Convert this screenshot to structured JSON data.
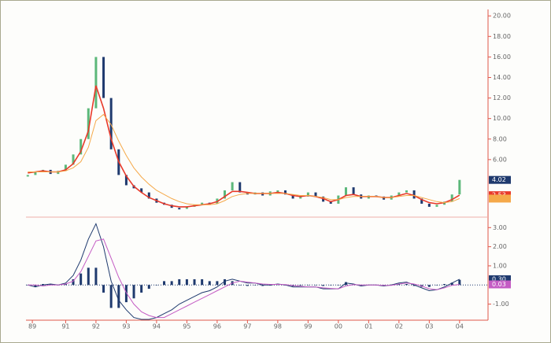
{
  "chart_data": {
    "type": "financial",
    "x": [
      1989.75,
      1990,
      1990.25,
      1990.5,
      1990.75,
      1991,
      1991.25,
      1991.5,
      1991.75,
      1992,
      1992.25,
      1992.5,
      1992.75,
      1993,
      1993.25,
      1993.5,
      1993.75,
      1994,
      1994.25,
      1994.5,
      1994.75,
      1995,
      1995.25,
      1995.5,
      1995.75,
      1996,
      1996.25,
      1996.5,
      1996.75,
      1997,
      1997.25,
      1997.5,
      1997.75,
      1998,
      1998.25,
      1998.5,
      1998.75,
      1999,
      1999.25,
      1999.5,
      1999.75,
      2000,
      2000.25,
      2000.5,
      2000.75,
      2001,
      2001.25,
      2001.5,
      2001.75,
      2002,
      2002.25,
      2002.5,
      2002.75,
      2003,
      2003.25,
      2003.5,
      2003.75,
      2004
    ],
    "xlim": [
      1989.69,
      2004.42
    ],
    "xticks": [
      {
        "value": 1989.9,
        "label": "89"
      },
      {
        "value": 1991,
        "label": "91"
      },
      {
        "value": 1992,
        "label": "92"
      },
      {
        "value": 1993,
        "label": "93"
      },
      {
        "value": 1994,
        "label": "94"
      },
      {
        "value": 1995,
        "label": "95"
      },
      {
        "value": 1996,
        "label": "96"
      },
      {
        "value": 1997,
        "label": "97"
      },
      {
        "value": 1998,
        "label": "98"
      },
      {
        "value": 1999,
        "label": "99"
      },
      {
        "value": 2000,
        "label": "00"
      },
      {
        "value": 2001,
        "label": "01"
      },
      {
        "value": 2002,
        "label": "02"
      },
      {
        "value": 2003,
        "label": "03"
      },
      {
        "value": 2004,
        "label": "04"
      }
    ],
    "panels": [
      {
        "ylim": [
          0.7,
          20.4
        ],
        "yticks": [
          {
            "value": 20,
            "label": "20.00"
          },
          {
            "value": 18,
            "label": "18.00"
          },
          {
            "value": 16,
            "label": "16.00"
          },
          {
            "value": 14,
            "label": "14.00"
          },
          {
            "value": 12,
            "label": "12.00"
          },
          {
            "value": 10,
            "label": "10.00"
          },
          {
            "value": 8,
            "label": "8.00"
          },
          {
            "value": 6,
            "label": "6.00"
          }
        ],
        "series": [
          {
            "style": "bars",
            "color": "#1f3a6e",
            "up_color": "#5cb87a",
            "last_label": "4.02",
            "values": [
              4.5,
              4.8,
              5.0,
              4.6,
              4.9,
              5.5,
              6.5,
              8.0,
              11.0,
              16.0,
              12.0,
              7.0,
              4.5,
              3.5,
              3.2,
              2.8,
              2.2,
              1.8,
              1.6,
              1.3,
              1.2,
              1.4,
              1.6,
              1.8,
              1.7,
              2.2,
              3.0,
              3.8,
              2.8,
              2.6,
              2.8,
              2.5,
              2.9,
              3.0,
              2.6,
              2.2,
              2.4,
              2.8,
              2.4,
              1.9,
              1.7,
              2.5,
              3.3,
              2.6,
              2.2,
              2.5,
              2.4,
              2.1,
              2.5,
              2.8,
              3.0,
              2.2,
              1.7,
              1.4,
              1.6,
              1.9,
              2.6,
              4.02
            ]
          },
          {
            "style": "line",
            "color": "#e8392a",
            "last_label": "2.53",
            "values": [
              4.7,
              4.8,
              4.9,
              4.8,
              4.8,
              5.0,
              5.6,
              6.8,
              8.8,
              13.2,
              11.0,
              8.0,
              5.8,
              4.4,
              3.4,
              2.8,
              2.3,
              2.0,
              1.7,
              1.5,
              1.4,
              1.4,
              1.5,
              1.6,
              1.7,
              1.9,
              2.4,
              2.9,
              2.9,
              2.8,
              2.7,
              2.7,
              2.7,
              2.8,
              2.7,
              2.5,
              2.4,
              2.5,
              2.4,
              2.2,
              1.9,
              2.1,
              2.5,
              2.6,
              2.4,
              2.4,
              2.4,
              2.3,
              2.3,
              2.5,
              2.7,
              2.5,
              2.1,
              1.8,
              1.7,
              1.8,
              2.1,
              2.53
            ]
          },
          {
            "style": "line",
            "color": "#f5a94a",
            "values": [
              4.8,
              4.8,
              4.8,
              4.8,
              4.8,
              4.9,
              5.2,
              5.8,
              7.2,
              9.8,
              10.4,
              9.4,
              7.8,
              6.4,
              5.2,
              4.3,
              3.6,
              3.0,
              2.6,
              2.2,
              1.9,
              1.7,
              1.6,
              1.6,
              1.6,
              1.7,
              2.0,
              2.4,
              2.6,
              2.7,
              2.7,
              2.7,
              2.7,
              2.7,
              2.7,
              2.6,
              2.5,
              2.5,
              2.4,
              2.3,
              2.1,
              2.1,
              2.3,
              2.4,
              2.4,
              2.4,
              2.4,
              2.3,
              2.3,
              2.4,
              2.5,
              2.5,
              2.3,
              2.1,
              1.9,
              1.8,
              1.9,
              2.2
            ]
          }
        ]
      },
      {
        "ylim": [
          -1.8,
          3.3
        ],
        "yticks": [
          {
            "value": 3,
            "label": "3.00"
          },
          {
            "value": 2,
            "label": "2.00"
          },
          {
            "value": 1,
            "label": "1.00"
          },
          {
            "value": -1,
            "label": "-1.00"
          }
        ],
        "series": [
          {
            "style": "histogram",
            "color": "#1f3a6e",
            "values": [
              0,
              -0.1,
              0.05,
              0.05,
              0,
              0.05,
              0.3,
              0.6,
              0.9,
              0.9,
              -0.4,
              -1.2,
              -1.2,
              -0.9,
              -0.7,
              -0.4,
              -0.2,
              0,
              0.2,
              0.2,
              0.3,
              0.3,
              0.3,
              0.3,
              0.2,
              0.2,
              0.3,
              0.2,
              0,
              -0.05,
              0,
              -0.05,
              -0.03,
              0.02,
              -0.02,
              -0.07,
              -0.03,
              0,
              0,
              -0.05,
              -0.02,
              0,
              0.15,
              0.03,
              -0.05,
              0,
              0,
              -0.03,
              0.02,
              0.05,
              0.05,
              -0.05,
              -0.1,
              -0.1,
              0,
              0.05,
              0.12,
              0.27
            ]
          },
          {
            "style": "line",
            "color": "#1f3a6e",
            "last_label": "0.30",
            "values": [
              0,
              -0.1,
              0,
              0.05,
              0,
              0.1,
              0.5,
              1.3,
              2.4,
              3.2,
              2.0,
              0.2,
              -0.8,
              -1.3,
              -1.7,
              -1.8,
              -1.8,
              -1.7,
              -1.5,
              -1.3,
              -1.0,
              -0.8,
              -0.6,
              -0.4,
              -0.3,
              -0.1,
              0.2,
              0.3,
              0.2,
              0.1,
              0.1,
              0,
              0,
              0.05,
              0,
              -0.1,
              -0.1,
              -0.1,
              -0.1,
              -0.2,
              -0.2,
              -0.2,
              0.1,
              0.05,
              -0.05,
              0,
              0,
              -0.05,
              0,
              0.1,
              0.15,
              0,
              -0.15,
              -0.3,
              -0.25,
              -0.1,
              0.1,
              0.3
            ]
          },
          {
            "style": "line",
            "color": "#c45cc4",
            "last_label": "0.03",
            "values": [
              0,
              0,
              -0.05,
              0,
              0,
              0.05,
              0.2,
              0.7,
              1.5,
              2.3,
              2.4,
              1.4,
              0.4,
              -0.4,
              -1.0,
              -1.4,
              -1.6,
              -1.7,
              -1.7,
              -1.5,
              -1.3,
              -1.1,
              -0.9,
              -0.7,
              -0.5,
              -0.3,
              -0.1,
              0.1,
              0.2,
              0.15,
              0.1,
              0.05,
              0.03,
              0.03,
              0.02,
              -0.03,
              -0.07,
              -0.1,
              -0.1,
              -0.15,
              -0.18,
              -0.2,
              -0.05,
              0.02,
              0,
              0,
              0,
              -0.02,
              -0.02,
              0.05,
              0.1,
              0.05,
              -0.05,
              -0.2,
              -0.25,
              -0.15,
              -0.02,
              0.03
            ]
          }
        ]
      }
    ]
  }
}
